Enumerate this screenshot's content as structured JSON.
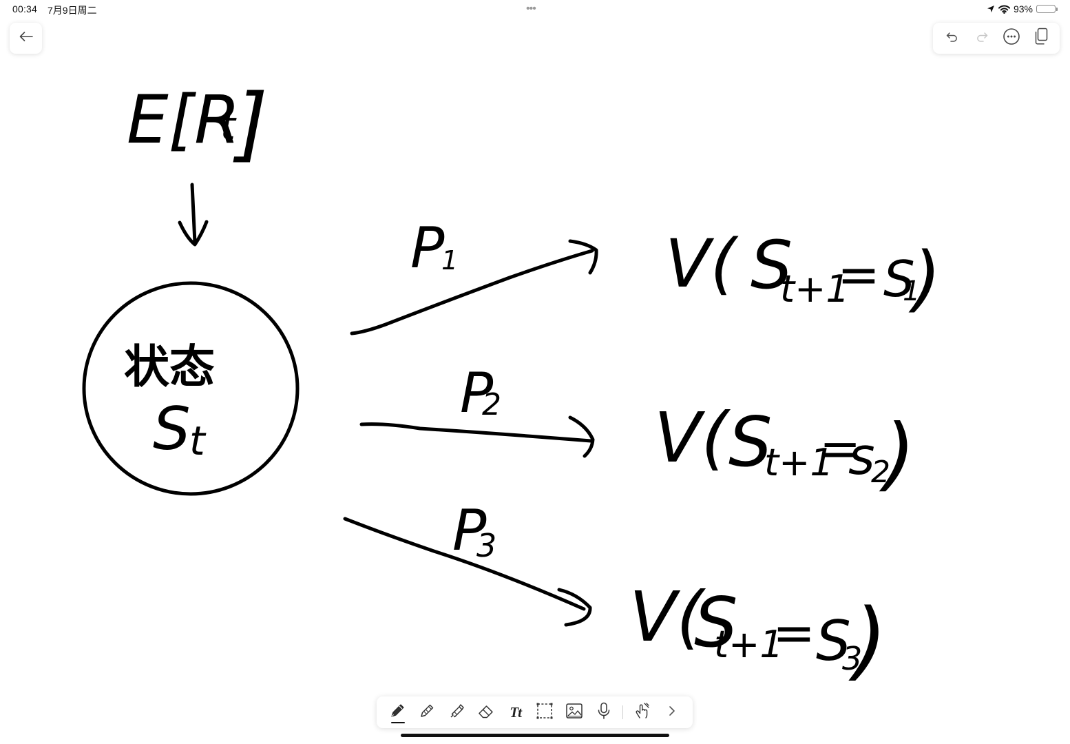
{
  "status_bar": {
    "time": "00:34",
    "date": "7月9日周二",
    "multitask_indicator": "•••",
    "battery_label": "93%",
    "battery_level": 0.93,
    "icons": [
      "location-arrow-icon",
      "wifi-icon",
      "battery-icon"
    ]
  },
  "header": {
    "back_icon": "arrow-left-icon",
    "toolbar_icons": [
      "undo-icon",
      "redo-icon",
      "more-options-icon",
      "pages-icon"
    ],
    "redo_enabled": false
  },
  "note": {
    "expectation": "E[R",
    "expectation_subscript": "t",
    "expectation_close": "]",
    "state_label_cn": "状态",
    "state_symbol": "S",
    "state_subscript": "t",
    "branches": [
      {
        "probability": "P",
        "probability_subscript": "1",
        "value_prefix": "V(",
        "value_state": "S",
        "value_state_subscript": "t+1",
        "value_equals": "=",
        "value_target": "S",
        "value_target_subscript": "1",
        "value_close": ")"
      },
      {
        "probability": "P",
        "probability_subscript": "2",
        "value_prefix": "V(",
        "value_state": "S",
        "value_state_subscript": "t+1",
        "value_equals": "=",
        "value_target": "s",
        "value_target_subscript": "2",
        "value_close": ")"
      },
      {
        "probability": "P",
        "probability_subscript": "3",
        "value_prefix": "V(",
        "value_state": "S",
        "value_state_subscript": "t+1",
        "value_equals": "=",
        "value_target": "S",
        "value_target_subscript": "3",
        "value_close": ")"
      }
    ],
    "ink_color": "#000000"
  },
  "tool_dock": {
    "tools": [
      {
        "name": "pen-tool",
        "icon": "pen-icon",
        "active": true
      },
      {
        "name": "pencil-tool",
        "icon": "pencil-icon",
        "active": false
      },
      {
        "name": "highlighter-tool",
        "icon": "highlighter-icon",
        "active": false
      },
      {
        "name": "eraser-tool",
        "icon": "eraser-icon",
        "active": false
      },
      {
        "name": "text-tool",
        "icon": "text-icon",
        "label": "Tt",
        "active": false
      },
      {
        "name": "lasso-tool",
        "icon": "lasso-select-icon",
        "active": false
      },
      {
        "name": "image-tool",
        "icon": "image-icon",
        "active": false
      },
      {
        "name": "audio-tool",
        "icon": "microphone-icon",
        "active": false
      },
      {
        "name": "touch-draw-tool",
        "icon": "hand-draw-icon",
        "active": false
      },
      {
        "name": "expand-tools",
        "icon": "chevron-right-icon",
        "active": false
      }
    ]
  }
}
